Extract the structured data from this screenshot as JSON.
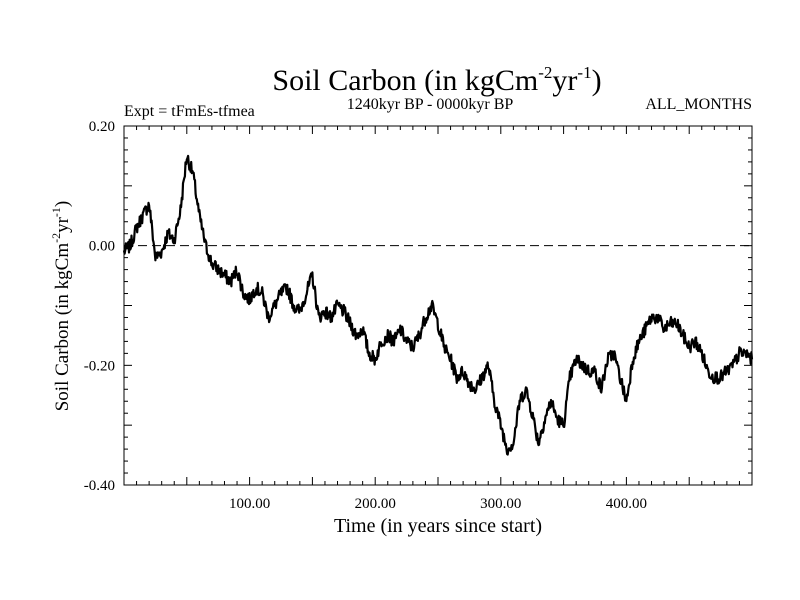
{
  "header": {
    "title_main": "Soil Carbon (in kgCm",
    "title_sup1": "-2",
    "title_mid": "yr",
    "title_sup2": "-1",
    "title_end": ")",
    "expt_label": "Expt = tFmEs-tfmea",
    "period_label": "1240kyr BP - 0000kyr BP",
    "months_label": "ALL_MONTHS"
  },
  "chart_data": {
    "type": "line",
    "title": "Soil Carbon (in kgCm-2yr-1)",
    "xlabel": "Time (in years since start)",
    "ylabel": "Soil Carbon (in kgCm-2yr-1)",
    "xlim": [
      0,
      500
    ],
    "ylim": [
      -0.4,
      0.2
    ],
    "x_ticks": [
      100,
      200,
      300,
      400
    ],
    "x_tick_labels": [
      "100.00",
      "200.00",
      "300.00",
      "400.00"
    ],
    "y_ticks": [
      0.2,
      0.0,
      -0.2,
      -0.4
    ],
    "y_tick_labels": [
      "0.20",
      "0.00",
      "-0.20",
      "-0.40"
    ],
    "reference_line": {
      "y": 0.0,
      "style": "dashed"
    },
    "series": [
      {
        "name": "Soil Carbon",
        "color": "#000000",
        "x": [
          0,
          5,
          10,
          15,
          20,
          25,
          30,
          35,
          40,
          45,
          50,
          55,
          60,
          65,
          70,
          75,
          80,
          85,
          90,
          95,
          100,
          105,
          110,
          115,
          120,
          125,
          130,
          135,
          140,
          145,
          150,
          155,
          160,
          165,
          170,
          175,
          180,
          185,
          190,
          195,
          200,
          205,
          210,
          215,
          220,
          225,
          230,
          235,
          240,
          245,
          250,
          255,
          260,
          265,
          270,
          275,
          280,
          285,
          290,
          295,
          300,
          305,
          310,
          315,
          320,
          325,
          330,
          335,
          340,
          345,
          350,
          355,
          360,
          365,
          370,
          375,
          380,
          385,
          390,
          395,
          400,
          405,
          410,
          415,
          420,
          425,
          430,
          435,
          440,
          445,
          450,
          455,
          460,
          465,
          470,
          475,
          480,
          485,
          490,
          495,
          500
        ],
        "values": [
          -0.01,
          0.0,
          0.03,
          0.05,
          0.07,
          -0.02,
          -0.01,
          0.02,
          0.01,
          0.06,
          0.15,
          0.12,
          0.05,
          0.0,
          -0.03,
          -0.04,
          -0.05,
          -0.06,
          -0.04,
          -0.08,
          -0.09,
          -0.07,
          -0.08,
          -0.12,
          -0.1,
          -0.08,
          -0.07,
          -0.1,
          -0.11,
          -0.08,
          -0.05,
          -0.12,
          -0.11,
          -0.12,
          -0.1,
          -0.11,
          -0.13,
          -0.15,
          -0.14,
          -0.18,
          -0.19,
          -0.16,
          -0.15,
          -0.16,
          -0.14,
          -0.16,
          -0.17,
          -0.15,
          -0.12,
          -0.1,
          -0.13,
          -0.17,
          -0.19,
          -0.22,
          -0.21,
          -0.23,
          -0.24,
          -0.22,
          -0.2,
          -0.26,
          -0.3,
          -0.34,
          -0.33,
          -0.26,
          -0.24,
          -0.28,
          -0.33,
          -0.29,
          -0.26,
          -0.29,
          -0.3,
          -0.22,
          -0.19,
          -0.2,
          -0.21,
          -0.21,
          -0.24,
          -0.19,
          -0.18,
          -0.22,
          -0.26,
          -0.19,
          -0.16,
          -0.14,
          -0.12,
          -0.12,
          -0.14,
          -0.13,
          -0.13,
          -0.15,
          -0.17,
          -0.16,
          -0.18,
          -0.21,
          -0.22,
          -0.22,
          -0.21,
          -0.2,
          -0.18,
          -0.18,
          -0.19
        ]
      }
    ]
  }
}
